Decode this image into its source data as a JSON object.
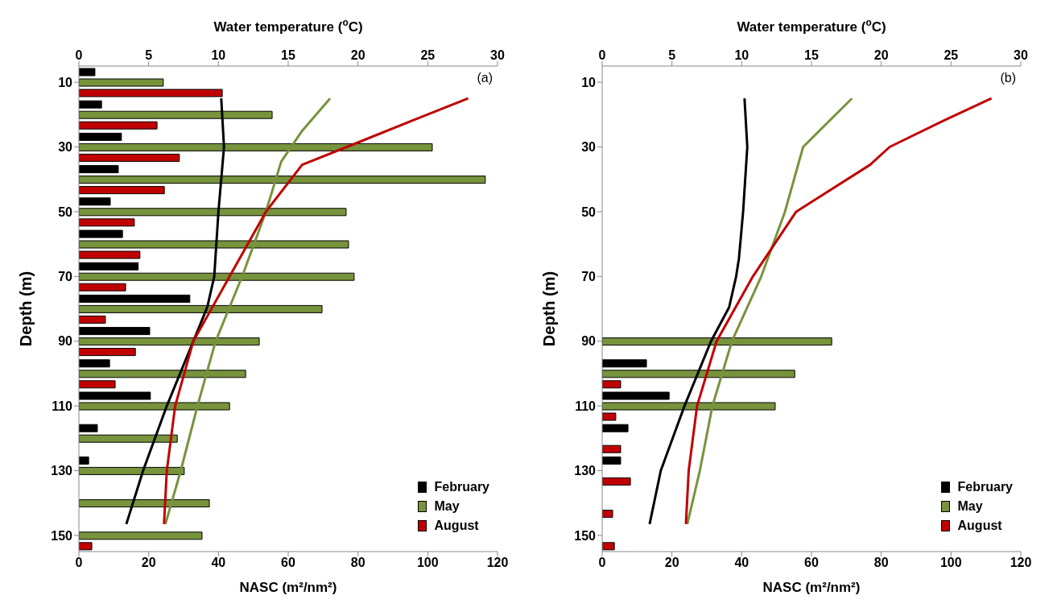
{
  "chart_data": [
    {
      "type": "bar",
      "orientation": "horizontal",
      "xlabel": "NASC (m²/nm²)",
      "x2label": "Water temperature ($^{o}$C)",
      "ylabel": "Depth (m)",
      "xlim": [
        0,
        120
      ],
      "xticks": [
        0,
        20,
        40,
        60,
        80,
        100,
        120
      ],
      "x2lim": [
        0,
        30
      ],
      "x2ticks": [
        0,
        5,
        10,
        15,
        20,
        25,
        30
      ],
      "ylim": [
        155,
        5
      ],
      "yticks": [
        10,
        30,
        50,
        70,
        90,
        110,
        130,
        150
      ],
      "legend": "bottom right",
      "annotations": [
        "(a)"
      ],
      "series": [
        {
          "name": "February",
          "color": "#000000",
          "x": [
            10,
            20,
            30,
            40,
            50,
            60,
            70,
            80,
            90,
            100,
            110,
            120,
            130
          ],
          "values": [
            4.6,
            6.5,
            12.2,
            11.3,
            9,
            12.5,
            17,
            31.8,
            20.3,
            8.8,
            20.5,
            5.3,
            2.8
          ]
        },
        {
          "name": "May",
          "color": "#77933c",
          "x": [
            10,
            20,
            30,
            40,
            50,
            60,
            70,
            80,
            90,
            100,
            110,
            120,
            130,
            140,
            150
          ],
          "values": [
            24.2,
            55.4,
            101.3,
            116.5,
            76.6,
            77.3,
            78.9,
            69.7,
            51.7,
            47.8,
            43.2,
            28.2,
            30.2,
            37.4,
            35.3
          ]
        },
        {
          "name": "August",
          "color": "#c00000",
          "x": [
            10,
            20,
            30,
            40,
            50,
            60,
            70,
            80,
            90,
            100,
            150
          ],
          "values": [
            41.1,
            22.4,
            28.8,
            24.5,
            15.9,
            17.5,
            13.4,
            7.6,
            16.2,
            10.4,
            3.7
          ]
        },
        {
          "type": "line",
          "axis": "x2",
          "color": "#000000",
          "x": [
            15,
            30,
            50,
            70,
            79.5,
            90,
            110,
            130,
            146.5
          ],
          "values": [
            10.2,
            10.4,
            10.0,
            9.7,
            9.2,
            8.2,
            6.3,
            4.6,
            3.4
          ]
        },
        {
          "type": "line",
          "axis": "x2",
          "color": "#77933c",
          "x": [
            15,
            25,
            34.5,
            50,
            70,
            90,
            110,
            130,
            146.5
          ],
          "values": [
            18.0,
            16.0,
            14.5,
            13.4,
            11.7,
            9.8,
            8.5,
            7.3,
            6.2
          ]
        },
        {
          "type": "line",
          "axis": "x2",
          "color": "#c00000",
          "x": [
            15,
            22,
            30,
            35.5,
            50,
            70,
            90,
            110,
            130,
            146.5
          ],
          "values": [
            27.9,
            23.8,
            19.2,
            16.0,
            13.4,
            10.8,
            8.2,
            6.9,
            6.3,
            6.1
          ]
        }
      ]
    },
    {
      "type": "bar",
      "orientation": "horizontal",
      "xlabel": "NASC (m²/nm²)",
      "x2label": "Water temperature ($^{o}$C)",
      "ylabel": "Depth (m)",
      "xlim": [
        0,
        120
      ],
      "xticks": [
        0,
        20,
        40,
        60,
        80,
        100,
        120
      ],
      "x2lim": [
        0,
        30
      ],
      "x2ticks": [
        0,
        5,
        10,
        15,
        20,
        25,
        30
      ],
      "ylim": [
        155,
        5
      ],
      "yticks": [
        10,
        30,
        50,
        70,
        90,
        110,
        130,
        150
      ],
      "legend": "bottom right",
      "annotations": [
        "(b)"
      ],
      "series": [
        {
          "name": "February",
          "color": "#000000",
          "x": [
            100,
            110,
            120,
            130
          ],
          "values": [
            12.7,
            19.2,
            7.4,
            5.3
          ]
        },
        {
          "name": "May",
          "color": "#77933c",
          "x": [
            90,
            100,
            110
          ],
          "values": [
            65.8,
            55.2,
            49.6
          ]
        },
        {
          "name": "August",
          "color": "#c00000",
          "x": [
            100,
            110,
            120,
            130,
            140,
            150
          ],
          "values": [
            5.3,
            3.9,
            5.3,
            8.1,
            3,
            3.5
          ]
        },
        {
          "type": "line",
          "axis": "x2",
          "color": "#000000",
          "x": [
            15,
            30,
            50,
            64.5,
            70,
            79.5,
            90,
            110,
            130,
            146.5
          ],
          "values": [
            10.2,
            10.4,
            10.1,
            9.8,
            9.6,
            9.1,
            7.8,
            5.9,
            4.2,
            3.4
          ]
        },
        {
          "type": "line",
          "axis": "x2",
          "color": "#77933c",
          "x": [
            15,
            30,
            50,
            70,
            90,
            110,
            130,
            146.5
          ],
          "values": [
            17.9,
            14.4,
            13.1,
            11.4,
            9.3,
            7.9,
            7.0,
            6.1
          ]
        },
        {
          "type": "line",
          "axis": "x2",
          "color": "#c00000",
          "x": [
            15,
            22,
            30,
            35.5,
            50,
            70,
            90,
            110,
            130,
            146.5
          ],
          "values": [
            27.9,
            24.4,
            20.6,
            19.2,
            13.9,
            10.8,
            8.2,
            6.8,
            6.2,
            6.0
          ]
        }
      ]
    }
  ]
}
